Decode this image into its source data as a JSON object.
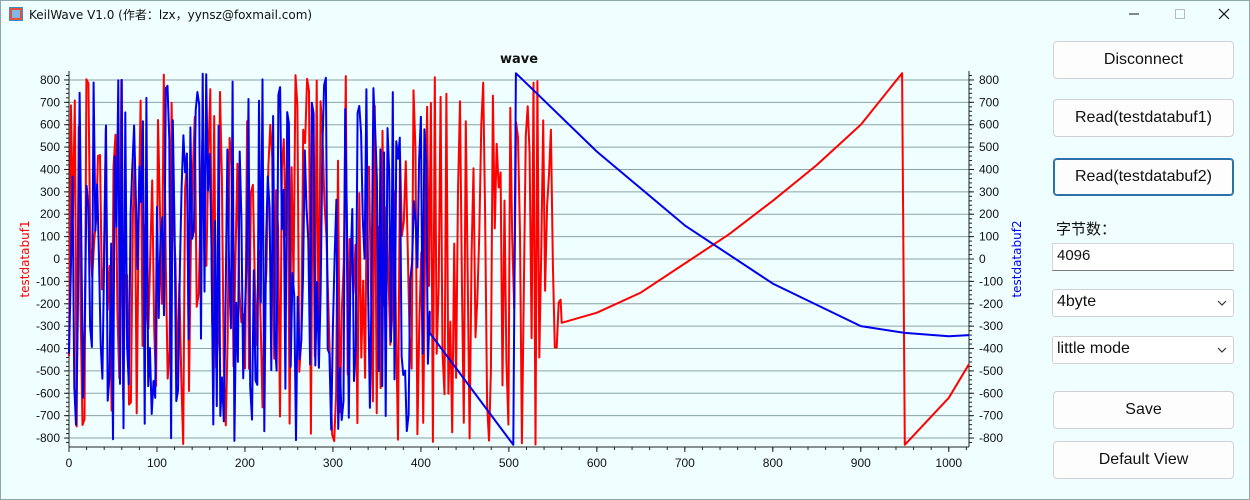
{
  "window": {
    "title": "KeilWave V1.0 (作者：lzx，yynsz@foxmail.com)"
  },
  "controls": {
    "disconnect_label": "Disconnect",
    "read1_label": "Read(testdatabuf1)",
    "read2_label": "Read(testdatabuf2)",
    "byte_count_label": "字节数：",
    "byte_count_value": "4096",
    "size_option": "4byte",
    "endian_option": "little mode",
    "save_label": "Save",
    "default_view_label": "Default View"
  },
  "colors": {
    "series1": "#ff0000",
    "series2": "#0000ee",
    "background": "#effefe"
  },
  "chart_data": {
    "type": "line",
    "title": "wave",
    "xlabel": "",
    "ylabel_left": "testdatabuf1",
    "ylabel_right": "testdatabuf2",
    "xlim": [
      0,
      1023
    ],
    "ylim": [
      -840,
      840
    ],
    "xticks": [
      "0",
      "100",
      "200",
      "300",
      "400",
      "500",
      "600",
      "700",
      "800",
      "900",
      "1000"
    ],
    "yticks": [
      "800",
      "700",
      "600",
      "500",
      "400",
      "300",
      "200",
      "100",
      "0",
      "-100",
      "-200",
      "-300",
      "-400",
      "-500",
      "-600",
      "-700",
      "-800"
    ],
    "grid": true,
    "series": [
      {
        "name": "testdatabuf1",
        "axis": "left",
        "color": "#ff0000",
        "segments": [
          {
            "kind": "noise",
            "x_start": 0,
            "x_end": 560,
            "min": -830,
            "max": 830,
            "seed": 7,
            "step": 2.2
          },
          {
            "kind": "line",
            "x": [
              560,
              600,
              650,
              700,
              750,
              800,
              850,
              900,
              947
            ],
            "y": [
              -285,
              -240,
              -150,
              -20,
              110,
              260,
              420,
              600,
              830
            ]
          },
          {
            "kind": "line",
            "x": [
              947,
              950,
              1000,
              1023
            ],
            "y": [
              830,
              -830,
              -620,
              -470
            ]
          }
        ]
      },
      {
        "name": "testdatabuf2",
        "axis": "right",
        "color": "#0000ee",
        "segments": [
          {
            "kind": "noise",
            "x_start": 0,
            "x_end": 410,
            "min": -820,
            "max": 830,
            "seed": 13,
            "step": 2.0
          },
          {
            "kind": "line",
            "x": [
              410,
              505
            ],
            "y": [
              -330,
              -830
            ]
          },
          {
            "kind": "line",
            "x": [
              505,
              508,
              600,
              700,
              800,
              900,
              950,
              1000,
              1023
            ],
            "y": [
              -830,
              830,
              480,
              150,
              -110,
              -300,
              -330,
              -345,
              -340
            ]
          }
        ]
      }
    ]
  }
}
